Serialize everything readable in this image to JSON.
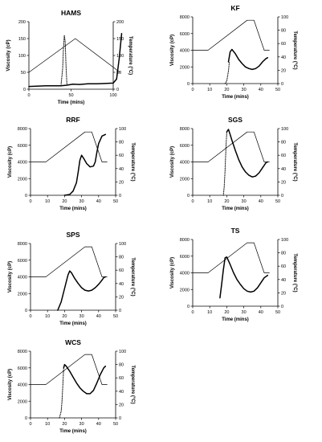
{
  "chart_data": [
    {
      "type": "line",
      "title": "HAMS",
      "xlabel": "Time (mins)",
      "ylabel": "Viscosity (cP)",
      "y2label": "Temperature (°C)",
      "xlim": [
        0,
        100
      ],
      "xticks": [
        0,
        50,
        100
      ],
      "ylim": [
        0,
        200
      ],
      "yticks": [
        0,
        50,
        100,
        150,
        200
      ],
      "y2lim": [
        0,
        200
      ],
      "y2ticks": [
        0,
        50,
        100,
        150,
        200
      ],
      "series": [
        {
          "role": "viscosity",
          "style": "bold",
          "x": [
            0,
            20,
            38,
            45,
            52,
            60,
            70,
            80,
            90,
            100,
            104,
            107,
            110
          ],
          "y": [
            8,
            10,
            10,
            12,
            15,
            14,
            16,
            16,
            17,
            18,
            30,
            90,
            165
          ]
        },
        {
          "role": "viscosity",
          "style": "dotted",
          "x": [
            38,
            40,
            41,
            42,
            43,
            44,
            45
          ],
          "y": [
            10,
            60,
            120,
            160,
            140,
            70,
            15
          ]
        },
        {
          "role": "temperature",
          "style": "thin",
          "x": [
            0,
            55,
            108
          ],
          "y": [
            50,
            150,
            50
          ]
        }
      ]
    },
    {
      "type": "line",
      "title": "KF",
      "xlabel": "Time (mins)",
      "ylabel": "Viscosity (cP)",
      "y2label": "Temperature (°C)",
      "xlim": [
        0,
        50
      ],
      "xticks": [
        0,
        10,
        20,
        30,
        40,
        50
      ],
      "ylim": [
        0,
        8000
      ],
      "yticks": [
        0,
        2000,
        4000,
        6000,
        8000
      ],
      "y2lim": [
        0,
        100
      ],
      "y2ticks": [
        0,
        20,
        40,
        60,
        80,
        100
      ],
      "series": [
        {
          "role": "viscosity",
          "style": "bold",
          "x": [
            21,
            22,
            23,
            25,
            27,
            29,
            31,
            33,
            35,
            37,
            39,
            41,
            43,
            44
          ],
          "y": [
            2600,
            3800,
            4100,
            3600,
            2900,
            2400,
            2000,
            1800,
            1700,
            1800,
            2100,
            2600,
            3000,
            3100
          ]
        },
        {
          "role": "viscosity",
          "style": "dotted",
          "x": [
            19,
            20,
            21,
            21.5
          ],
          "y": [
            0,
            300,
            1500,
            2600
          ]
        },
        {
          "role": "temperature",
          "style": "thin",
          "x": [
            0,
            9,
            32,
            36,
            42,
            45
          ],
          "y": [
            50,
            50,
            95,
            95,
            50,
            50
          ]
        }
      ]
    },
    {
      "type": "line",
      "title": "RRF",
      "xlabel": "Time (mins)",
      "ylabel": "Viscosity (cP)",
      "y2label": "Temperature (°C)",
      "xlim": [
        0,
        50
      ],
      "xticks": [
        0,
        10,
        20,
        30,
        40,
        50
      ],
      "ylim": [
        0,
        8000
      ],
      "yticks": [
        0,
        2000,
        4000,
        6000,
        8000
      ],
      "y2lim": [
        0,
        100
      ],
      "y2ticks": [
        0,
        20,
        40,
        60,
        80,
        100
      ],
      "series": [
        {
          "role": "viscosity",
          "style": "bold",
          "x": [
            20,
            23,
            25,
            27,
            28,
            29,
            30,
            31,
            33,
            35,
            37,
            38,
            39,
            40,
            42,
            44
          ],
          "y": [
            0,
            100,
            500,
            1500,
            2800,
            4200,
            4800,
            4500,
            3800,
            3400,
            3500,
            4000,
            5200,
            6200,
            7100,
            7300
          ]
        },
        {
          "role": "temperature",
          "style": "thin",
          "x": [
            0,
            9,
            32,
            36,
            42,
            45
          ],
          "y": [
            50,
            50,
            95,
            95,
            50,
            50
          ]
        }
      ]
    },
    {
      "type": "line",
      "title": "SGS",
      "xlabel": "Time (mins)",
      "ylabel": "Viscosity (cP)",
      "y2label": "Temperature (°C)",
      "xlim": [
        0,
        50
      ],
      "xticks": [
        0,
        10,
        20,
        30,
        40,
        50
      ],
      "ylim": [
        0,
        8000
      ],
      "yticks": [
        0,
        2000,
        4000,
        6000,
        8000
      ],
      "y2lim": [
        0,
        100
      ],
      "y2ticks": [
        0,
        20,
        40,
        60,
        80,
        100
      ],
      "series": [
        {
          "role": "viscosity",
          "style": "bold",
          "x": [
            20,
            21,
            22,
            23,
            25,
            27,
            29,
            31,
            33,
            35,
            37,
            39,
            41,
            43,
            44
          ],
          "y": [
            7600,
            7900,
            7300,
            6600,
            5400,
            4300,
            3400,
            2800,
            2400,
            2200,
            2300,
            2700,
            3300,
            3900,
            4000
          ]
        },
        {
          "role": "viscosity",
          "style": "dotted",
          "x": [
            18,
            18.5,
            19,
            19.5,
            20
          ],
          "y": [
            0,
            1000,
            3000,
            5500,
            7600
          ]
        },
        {
          "role": "temperature",
          "style": "thin",
          "x": [
            0,
            9,
            32,
            36,
            42,
            45
          ],
          "y": [
            50,
            50,
            95,
            95,
            50,
            50
          ]
        }
      ]
    },
    {
      "type": "line",
      "title": "SPS",
      "xlabel": "Time (mins)",
      "ylabel": "Viscosity (cP)",
      "y2label": "Temperature (°C)",
      "xlim": [
        0,
        50
      ],
      "xticks": [
        0,
        10,
        20,
        30,
        40,
        50
      ],
      "ylim": [
        0,
        8000
      ],
      "yticks": [
        0,
        2000,
        4000,
        6000,
        8000
      ],
      "y2lim": [
        0,
        100
      ],
      "y2ticks": [
        0,
        20,
        40,
        60,
        80,
        100
      ],
      "series": [
        {
          "role": "viscosity",
          "style": "bold",
          "x": [
            16,
            18,
            20,
            22,
            23,
            24,
            26,
            28,
            30,
            32,
            34,
            36,
            38,
            40,
            42,
            43,
            44
          ],
          "y": [
            0,
            1000,
            2600,
            4200,
            4700,
            4500,
            3800,
            3200,
            2700,
            2400,
            2300,
            2400,
            2700,
            3100,
            3600,
            3900,
            4000
          ]
        },
        {
          "role": "temperature",
          "style": "thin",
          "x": [
            0,
            9,
            32,
            36,
            42,
            45
          ],
          "y": [
            50,
            50,
            95,
            95,
            50,
            50
          ]
        }
      ]
    },
    {
      "type": "line",
      "title": "TS",
      "xlabel": "Time (mins)",
      "ylabel": "Viscosity (cP)",
      "y2label": "Temperature (°C)",
      "xlim": [
        0,
        50
      ],
      "xticks": [
        0,
        10,
        20,
        30,
        40,
        50
      ],
      "ylim": [
        0,
        8000
      ],
      "yticks": [
        0,
        2000,
        4000,
        6000,
        8000
      ],
      "y2lim": [
        0,
        100
      ],
      "y2ticks": [
        0,
        20,
        40,
        60,
        80,
        100
      ],
      "series": [
        {
          "role": "viscosity",
          "style": "bold",
          "x": [
            16,
            17,
            18,
            19,
            20,
            22,
            24,
            26,
            28,
            30,
            32,
            34,
            36,
            38,
            40,
            42,
            44
          ],
          "y": [
            1000,
            2600,
            4400,
            5800,
            5900,
            5000,
            4000,
            3200,
            2600,
            2100,
            1800,
            1700,
            1800,
            2200,
            2800,
            3400,
            3700
          ]
        },
        {
          "role": "temperature",
          "style": "thin",
          "x": [
            0,
            9,
            32,
            36,
            42,
            45
          ],
          "y": [
            50,
            50,
            95,
            95,
            50,
            50
          ]
        }
      ]
    },
    {
      "type": "line",
      "title": "WCS",
      "xlabel": "Time (mins)",
      "ylabel": "Viscosity (cP)",
      "y2label": "Temperature (°C)",
      "xlim": [
        0,
        50
      ],
      "xticks": [
        0,
        10,
        20,
        30,
        40,
        50
      ],
      "ylim": [
        0,
        8000
      ],
      "yticks": [
        0,
        2000,
        4000,
        6000,
        8000
      ],
      "y2lim": [
        0,
        100
      ],
      "y2ticks": [
        0,
        20,
        40,
        60,
        80,
        100
      ],
      "series": [
        {
          "role": "viscosity",
          "style": "bold",
          "x": [
            19.5,
            20,
            21,
            23,
            25,
            27,
            29,
            31,
            33,
            35,
            37,
            39,
            41,
            43,
            44
          ],
          "y": [
            6000,
            6400,
            6200,
            5600,
            4900,
            4200,
            3600,
            3200,
            2900,
            2900,
            3300,
            4200,
            5200,
            6000,
            6200
          ]
        },
        {
          "role": "viscosity",
          "style": "dotted",
          "x": [
            17,
            18,
            18.5,
            19,
            19.5
          ],
          "y": [
            0,
            800,
            2000,
            4000,
            6000
          ]
        },
        {
          "role": "temperature",
          "style": "thin",
          "x": [
            0,
            9,
            32,
            36,
            42,
            45
          ],
          "y": [
            50,
            50,
            95,
            95,
            50,
            50
          ]
        }
      ]
    }
  ]
}
